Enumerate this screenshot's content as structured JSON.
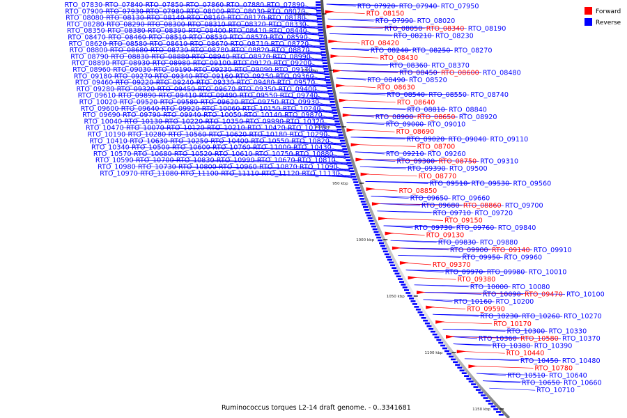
{
  "chart_data": {
    "type": "genome-map",
    "caption": "Ruminococcus torques L2-14 draft genome. - 0..3341681",
    "legend": {
      "position": "top-right",
      "items": [
        {
          "name": "Forward",
          "color": "#ff0000"
        },
        {
          "name": "Reverse",
          "color": "#0000ff"
        }
      ]
    },
    "colors": {
      "forward": "#ff0000",
      "reverse": "#0000ff",
      "backbone": "#888888"
    },
    "ticks": [
      "800 kbp",
      "850 kbp",
      "900 kbp",
      "950 kbp",
      "1000 kbp",
      "1050 kbp",
      "1100 kbp",
      "1150 kbp"
    ],
    "reverse_labels": [
      "RTO_07830",
      "RTO_07840",
      "RTO_07850",
      "RTO_07860",
      "RTO_07880",
      "RTO_07890",
      "RTO_07900",
      "RTO_07930",
      "RTO_07980",
      "RTO_08000",
      "RTO_08030",
      "RTO_08070",
      "RTO_08080",
      "RTO_08130",
      "RTO_08140",
      "RTO_08160",
      "RTO_08170",
      "RTO_08180",
      "RTO_08280",
      "RTO_08290",
      "RTO_08300",
      "RTO_08310",
      "RTO_08320",
      "RTO_08330",
      "RTO_08350",
      "RTO_08380",
      "RTO_08390",
      "RTO_08400",
      "RTO_08410",
      "RTO_08440",
      "RTO_08470",
      "RTO_08460",
      "RTO_08510",
      "RTO_08530",
      "RTO_08570",
      "RTO_08590",
      "RTO_08620",
      "RTO_08580",
      "RTO_08610",
      "RTO_08670",
      "RTO_08710",
      "RTO_08720",
      "RTO_08800",
      "RTO_08680",
      "RTO_08730",
      "RTO_08780",
      "RTO_08820",
      "RTO_08870",
      "RTO_08790",
      "RTO_08830",
      "RTO_08880",
      "RTO_08940",
      "RTO_08970",
      "RTO_08990",
      "RTO_08890",
      "RTO_08930",
      "RTO_08980",
      "RTO_09100",
      "RTO_09120",
      "RTO_09200",
      "RTO_08960",
      "RTO_09030",
      "RTO_09190",
      "RTO_09230",
      "RTO_09090",
      "RTO_09170",
      "RTO_09180",
      "RTO_09270",
      "RTO_09340",
      "RTO_09160",
      "RTO_09250",
      "RTO_09360",
      "RTO_09460",
      "RTO_09220",
      "RTO_09240",
      "RTO_09330",
      "RTO_09480",
      "RTO_09570",
      "RTO_09280",
      "RTO_09320",
      "RTO_09450",
      "RTO_09670",
      "RTO_09350",
      "RTO_09400",
      "RTO_09610",
      "RTO_09890",
      "RTO_09410",
      "RTO_09490",
      "RTO_09550",
      "RTO_09740",
      "RTO_10020",
      "RTO_09520",
      "RTO_09580",
      "RTO_09620",
      "RTO_09750",
      "RTO_09930",
      "RTO_09600",
      "RTO_09640",
      "RTO_09920",
      "RTO_10060",
      "RTO_10150",
      "RTO_10240",
      "RTO_09690",
      "RTO_09790",
      "RTO_09940",
      "RTO_10050",
      "RTO_10140",
      "RTO_09870",
      "RTO_10040",
      "RTO_10130",
      "RTO_10220",
      "RTO_10350",
      "RTO_09990",
      "RTO_10320",
      "RTO_10470",
      "RTO_10070",
      "RTO_10120",
      "RTO_10210",
      "RTO_10420",
      "RTO_10110",
      "RTO_10190",
      "RTO_10280",
      "RTO_10560",
      "RTO_10620",
      "RTO_10180",
      "RTO_10290",
      "RTO_10410",
      "RTO_10630",
      "RTO_10250",
      "RTO_10400",
      "RTO_10550",
      "RTO_10820",
      "RTO_10340",
      "RTO_10500",
      "RTO_10600",
      "RTO_10760",
      "RTO_11000",
      "RTO_10430",
      "RTO_10570",
      "RTO_10680",
      "RTO_10520",
      "RTO_10610",
      "RTO_10750",
      "RTO_10880",
      "RTO_10590",
      "RTO_10700",
      "RTO_10830",
      "RTO_10990",
      "RTO_10670",
      "RTO_10810",
      "RTO_10980",
      "RTO_10730",
      "RTO_10800",
      "RTO_10960",
      "RTO_10870",
      "RTO_11090",
      "RTO_10970",
      "RTO_11080",
      "RTO_11100",
      "RTO_11110",
      "RTO_11120",
      "RTO_11130"
    ],
    "forward_labels": [
      "RTO_08150",
      "RTO_08340",
      "RTO_08420",
      "RTO_08430",
      "RTO_08600",
      "RTO_08630",
      "RTO_08640",
      "RTO_08650",
      "RTO_08690",
      "RTO_08700",
      "RTO_08750",
      "RTO_08770",
      "RTO_08850",
      "RTO_08860",
      "RTO_09150",
      "RTO_09130",
      "RTO_09140",
      "RTO_09370",
      "RTO_09380",
      "RTO_09470",
      "RTO_09590",
      "RTO_10170",
      "RTO_10580",
      "RTO_10440",
      "RTO_10780"
    ],
    "right_reverse_labels": [
      "RTO_07920",
      "RTO_07940",
      "RTO_07950",
      "RTO_07990",
      "RTO_08020",
      "RTO_08050",
      "RTO_08190",
      "RTO_08210",
      "RTO_08230",
      "RTO_08240",
      "RTO_08250",
      "RTO_08270",
      "RTO_08360",
      "RTO_08370",
      "RTO_08450",
      "RTO_08480",
      "RTO_08490",
      "RTO_08520",
      "RTO_08540",
      "RTO_08550",
      "RTO_08740",
      "RTO_08810",
      "RTO_08840",
      "RTO_08900",
      "RTO_08920",
      "RTO_09000",
      "RTO_09010",
      "RTO_09020",
      "RTO_09040",
      "RTO_09110",
      "RTO_09210",
      "RTO_09260",
      "RTO_09300",
      "RTO_09310",
      "RTO_09390",
      "RTO_09500",
      "RTO_09510",
      "RTO_09530",
      "RTO_09560",
      "RTO_09650",
      "RTO_09660",
      "RTO_09680",
      "RTO_09700",
      "RTO_09710",
      "RTO_09720",
      "RTO_09730",
      "RTO_09760",
      "RTO_09840",
      "RTO_09830",
      "RTO_09880",
      "RTO_09900",
      "RTO_09910",
      "RTO_09950",
      "RTO_09960",
      "RTO_09970",
      "RTO_09980",
      "RTO_10010",
      "RTO_10000",
      "RTO_10080",
      "RTO_10090",
      "RTO_10100",
      "RTO_10160",
      "RTO_10200",
      "RTO_10230",
      "RTO_10260",
      "RTO_10270",
      "RTO_10300",
      "RTO_10330",
      "RTO_10360",
      "RTO_10370",
      "RTO_10380",
      "RTO_10390",
      "RTO_10450",
      "RTO_10480",
      "RTO_10490",
      "RTO_10510",
      "RTO_10640",
      "RTO_10650",
      "RTO_10660",
      "RTO_10690",
      "RTO_10710"
    ]
  }
}
